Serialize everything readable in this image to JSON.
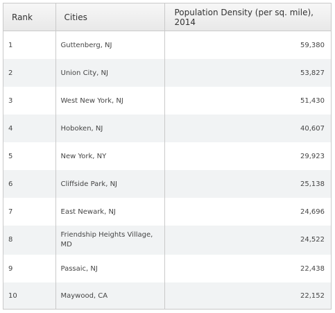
{
  "table": {
    "headers": {
      "rank": "Rank",
      "cities": "Cities",
      "density": "Population Density (per sq. mile), 2014"
    },
    "rows": [
      {
        "rank": "1",
        "city": "Guttenberg, NJ",
        "density": "59,380"
      },
      {
        "rank": "2",
        "city": "Union City, NJ",
        "density": "53,827"
      },
      {
        "rank": "3",
        "city": "West New York, NJ",
        "density": "51,430"
      },
      {
        "rank": "4",
        "city": "Hoboken, NJ",
        "density": "40,607"
      },
      {
        "rank": "5",
        "city": "New York, NY",
        "density": "29,923"
      },
      {
        "rank": "6",
        "city": "Cliffside Park, NJ",
        "density": "25,138"
      },
      {
        "rank": "7",
        "city": "East Newark, NJ",
        "density": "24,696"
      },
      {
        "rank": "8",
        "city": "Friendship Heights Village, MD",
        "density": "24,522"
      },
      {
        "rank": "9",
        "city": "Passaic, NJ",
        "density": "22,438"
      },
      {
        "rank": "10",
        "city": "Maywood, CA",
        "density": "22,152"
      }
    ]
  }
}
